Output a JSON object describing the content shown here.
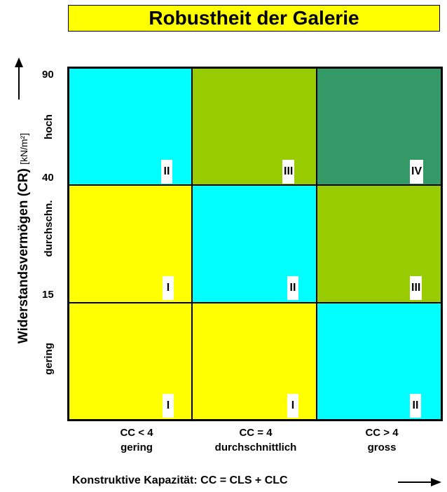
{
  "title": "Robustheit der Galerie",
  "y_axis": {
    "label_main": "Widerstandsvermögen (CR)",
    "label_unit": "[kN/m²]",
    "ticks": [
      "90",
      "40",
      "15"
    ],
    "rows": [
      "hoch",
      "durchschn.",
      "gering"
    ]
  },
  "x_axis": {
    "label": "Konstruktive Kapazität: CC = CLS + CLC",
    "columns": [
      {
        "line1": "CC < 4",
        "line2": "gering"
      },
      {
        "line1": "CC = 4",
        "line2": "durchschnittlich"
      },
      {
        "line1": "CC > 4",
        "line2": "gross"
      }
    ]
  },
  "colors": {
    "I": "#ffff00",
    "II": "#00ffff",
    "III": "#99cc00",
    "IV": "#339966",
    "title_bg": "#ffff00"
  },
  "matrix": [
    [
      "II",
      "III",
      "IV"
    ],
    [
      "I",
      "II",
      "III"
    ],
    [
      "I",
      "I",
      "II"
    ]
  ]
}
